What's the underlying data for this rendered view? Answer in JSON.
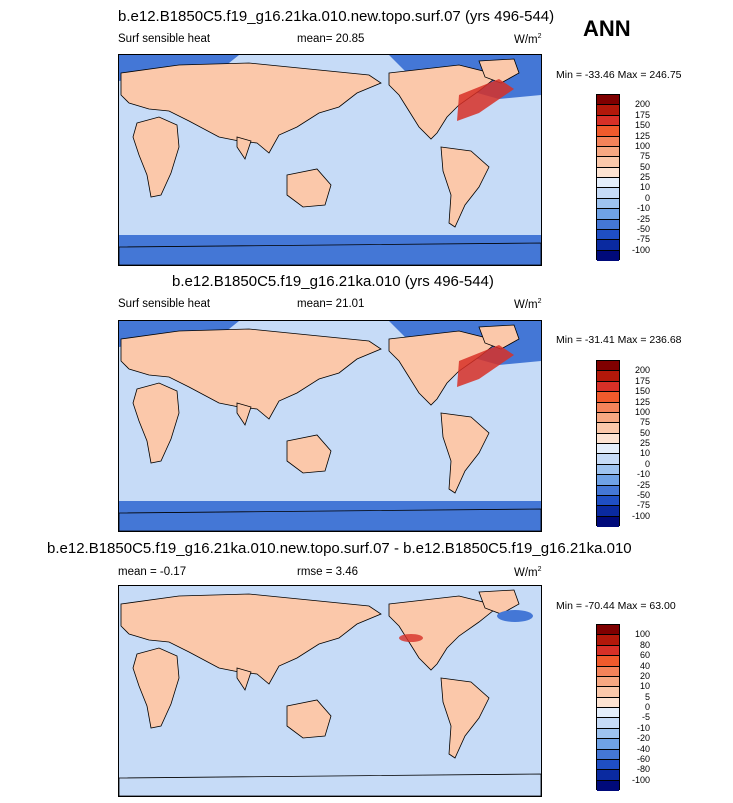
{
  "season": "ANN",
  "panels": [
    {
      "title": "b.e12.B1850C5.f19_g16.21ka.010.new.topo.surf.07 (yrs 496-544)",
      "variable": "Surf sensible heat",
      "stat1": "mean=  20.85",
      "stat2": "",
      "units": "W/m",
      "units_sup": "2",
      "minmax": "Min = -33.46 Max = 246.75",
      "colorbar": {
        "labels": [
          "200",
          "175",
          "150",
          "125",
          "100",
          "75",
          "50",
          "25",
          "10",
          "0",
          "-10",
          "-25",
          "-50",
          "-75",
          "-100"
        ],
        "colors": [
          "#7f0000",
          "#b2180a",
          "#d73027",
          "#f05a2c",
          "#f4835a",
          "#f7a882",
          "#fbc8aa",
          "#fde3d2",
          "#e4eefb",
          "#c6dbf7",
          "#9ec3f0",
          "#6fa2e6",
          "#4477d6",
          "#1f4fc4",
          "#0a2aa0",
          "#000a7a"
        ]
      }
    },
    {
      "title": "b.e12.B1850C5.f19_g16.21ka.010 (yrs 496-544)",
      "variable": "Surf sensible heat",
      "stat1": "mean=  21.01",
      "stat2": "",
      "units": "W/m",
      "units_sup": "2",
      "minmax": "Min = -31.41 Max = 236.68",
      "colorbar": {
        "labels": [
          "200",
          "175",
          "150",
          "125",
          "100",
          "75",
          "50",
          "25",
          "10",
          "0",
          "-10",
          "-25",
          "-50",
          "-75",
          "-100"
        ],
        "colors": [
          "#7f0000",
          "#b2180a",
          "#d73027",
          "#f05a2c",
          "#f4835a",
          "#f7a882",
          "#fbc8aa",
          "#fde3d2",
          "#e4eefb",
          "#c6dbf7",
          "#9ec3f0",
          "#6fa2e6",
          "#4477d6",
          "#1f4fc4",
          "#0a2aa0",
          "#000a7a"
        ]
      }
    },
    {
      "title": "b.e12.B1850C5.f19_g16.21ka.010.new.topo.surf.07 - b.e12.B1850C5.f19_g16.21ka.010",
      "variable": "",
      "stat1": "mean =  -0.17",
      "stat2": "rmse =   3.46",
      "units": "W/m",
      "units_sup": "2",
      "minmax": "Min = -70.44 Max = 63.00",
      "colorbar": {
        "labels": [
          "100",
          "80",
          "60",
          "40",
          "20",
          "10",
          "5",
          "0",
          "-5",
          "-10",
          "-20",
          "-40",
          "-60",
          "-80",
          "-100"
        ],
        "colors": [
          "#7f0000",
          "#b2180a",
          "#d73027",
          "#f05a2c",
          "#f4835a",
          "#f7a882",
          "#fbc8aa",
          "#fde3d2",
          "#e4eefb",
          "#c6dbf7",
          "#9ec3f0",
          "#6fa2e6",
          "#4477d6",
          "#1f4fc4",
          "#0a2aa0",
          "#000a7a"
        ]
      }
    }
  ],
  "map_fill": {
    "ocean": "#c6dbf7",
    "land_warm": "#fbc8aa",
    "polar_cold": "#4477d6",
    "hot": "#d73027",
    "coast": "#000000"
  }
}
